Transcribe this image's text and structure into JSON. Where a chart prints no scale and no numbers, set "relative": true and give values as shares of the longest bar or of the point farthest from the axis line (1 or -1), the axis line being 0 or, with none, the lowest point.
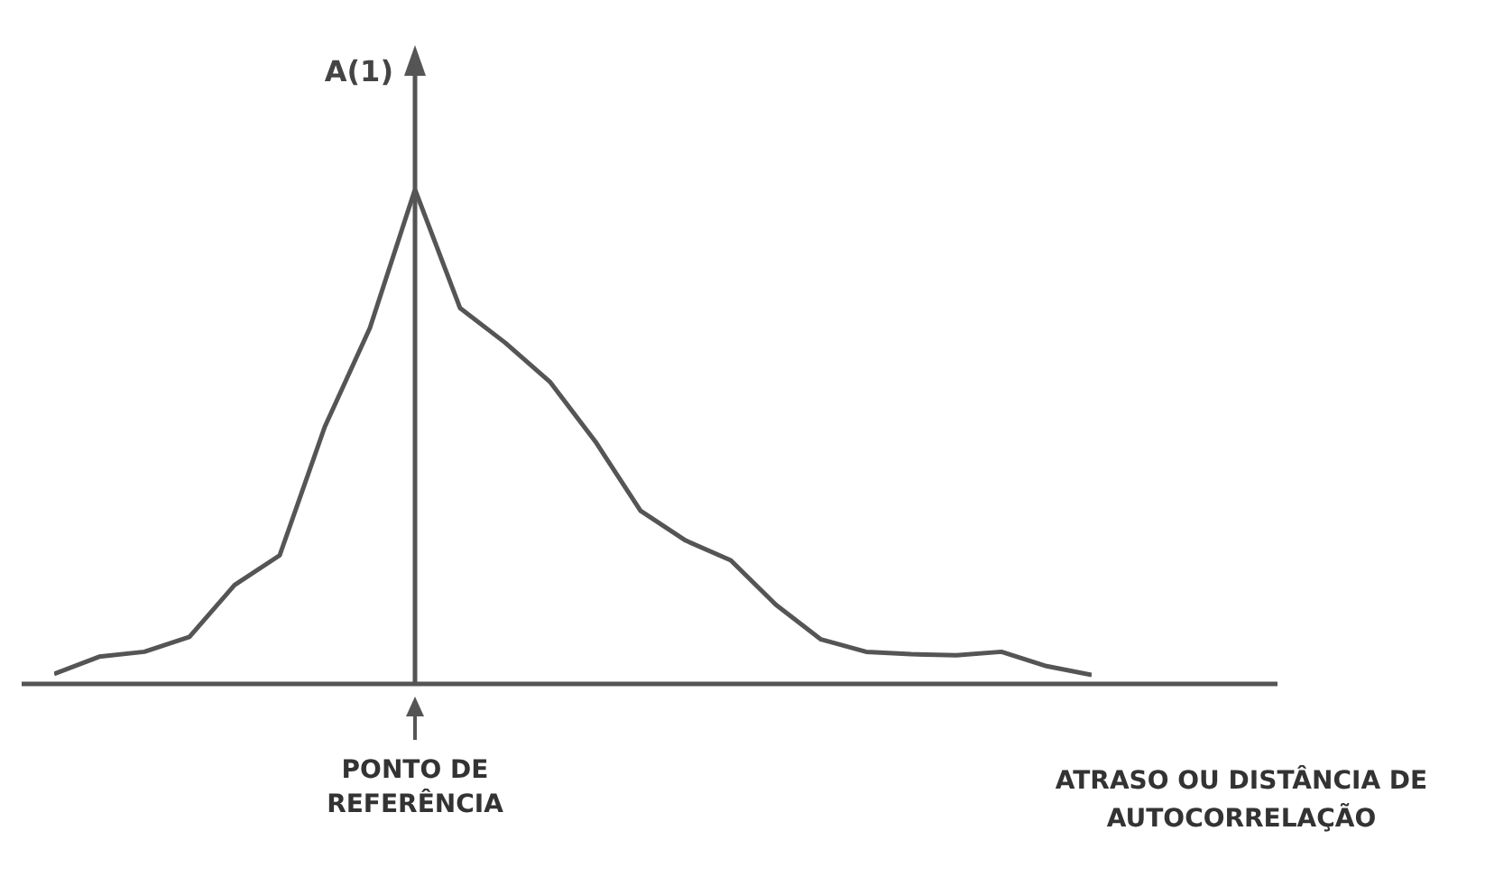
{
  "chart_data": {
    "type": "line",
    "relative": true,
    "ylabel": "A(1)",
    "xlabel": "ATRASO OU DISTÂNCIA DE AUTOCORRELAÇÃO",
    "annotations": [
      "PONTO DE REFERÊNCIA"
    ],
    "color": "#555555",
    "marker": "none",
    "categories": [
      null,
      null,
      null,
      null,
      null,
      null,
      null,
      null,
      null,
      null,
      null,
      null,
      null,
      null,
      null,
      null,
      null,
      null,
      null,
      null,
      null,
      null,
      null,
      null
    ],
    "values": [
      0.02,
      0.055,
      0.065,
      0.095,
      0.2,
      0.26,
      0.52,
      0.72,
      1,
      0.76,
      0.69,
      0.61,
      0.49,
      0.35,
      0.29,
      0.25,
      0.16,
      0.09,
      0.065,
      0.06,
      0.058,
      0.065,
      0.036,
      0.018
    ]
  }
}
